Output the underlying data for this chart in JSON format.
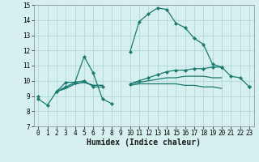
{
  "xlabel": "Humidex (Indice chaleur)",
  "x_values": [
    0,
    1,
    2,
    3,
    4,
    5,
    6,
    7,
    8,
    9,
    10,
    11,
    12,
    13,
    14,
    15,
    16,
    17,
    18,
    19,
    20,
    21,
    22,
    23
  ],
  "line1": [
    8.8,
    8.4,
    9.3,
    9.9,
    9.9,
    11.6,
    10.5,
    8.8,
    8.5,
    null,
    11.9,
    13.9,
    14.4,
    14.8,
    14.7,
    13.8,
    13.5,
    12.8,
    12.4,
    11.1,
    10.9,
    10.3,
    10.2,
    9.6
  ],
  "line2": [
    9.0,
    null,
    9.3,
    9.6,
    9.9,
    10.0,
    9.6,
    9.6,
    null,
    null,
    9.8,
    10.0,
    10.2,
    10.4,
    10.6,
    10.7,
    10.7,
    10.8,
    10.8,
    10.9,
    10.9,
    null,
    null,
    9.6
  ],
  "line3": [
    9.0,
    null,
    9.3,
    9.5,
    9.8,
    9.9,
    9.7,
    9.7,
    null,
    null,
    9.8,
    9.9,
    10.0,
    10.1,
    10.2,
    10.2,
    10.3,
    10.3,
    10.3,
    10.2,
    10.2,
    null,
    null,
    9.6
  ],
  "line4": [
    9.0,
    null,
    9.3,
    9.5,
    9.8,
    9.9,
    9.7,
    9.7,
    null,
    null,
    9.7,
    9.8,
    9.8,
    9.8,
    9.8,
    9.8,
    9.7,
    9.7,
    9.6,
    9.6,
    9.5,
    null,
    null,
    9.5
  ],
  "line_color": "#1a7a6e",
  "bg_color": "#d6f0f0",
  "grid_color": "#b0d8d8",
  "ylim": [
    7,
    15
  ],
  "xlim": [
    -0.5,
    23.5
  ],
  "yticks": [
    7,
    8,
    9,
    10,
    11,
    12,
    13,
    14,
    15
  ],
  "xticks": [
    0,
    1,
    2,
    3,
    4,
    5,
    6,
    7,
    8,
    9,
    10,
    11,
    12,
    13,
    14,
    15,
    16,
    17,
    18,
    19,
    20,
    21,
    22,
    23
  ],
  "tick_fontsize": 5.5,
  "xlabel_fontsize": 7.0
}
